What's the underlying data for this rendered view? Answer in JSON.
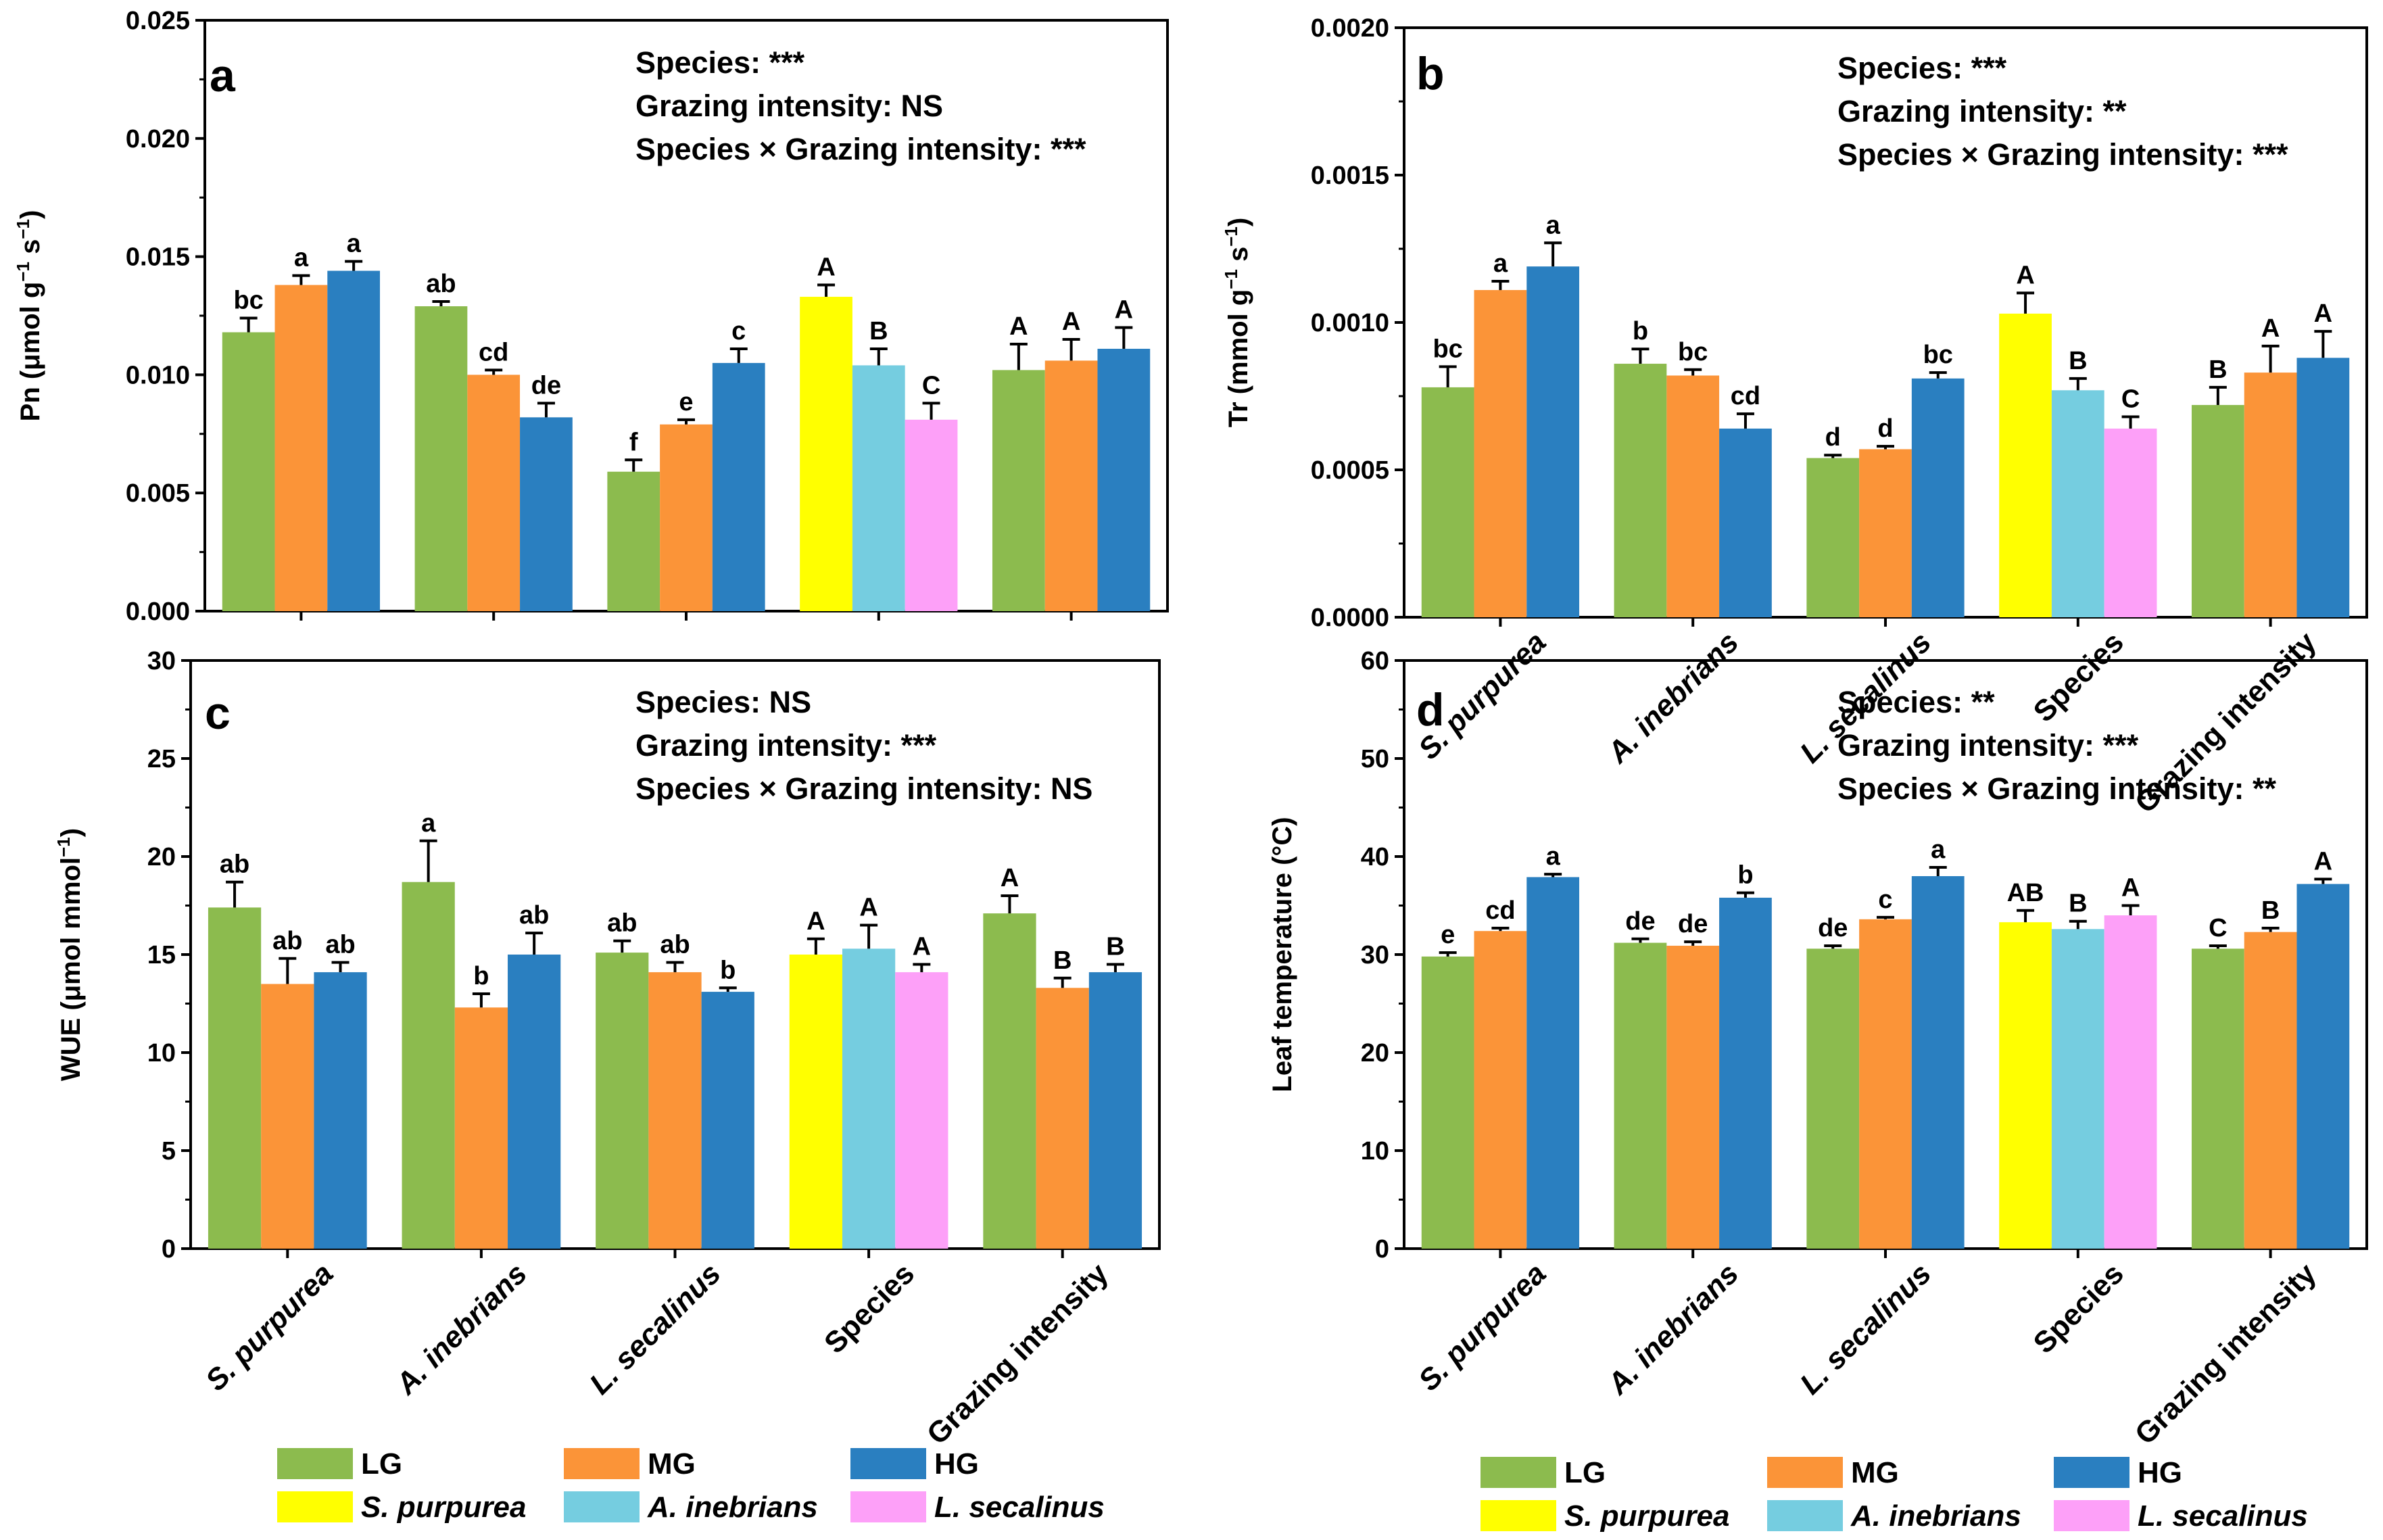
{
  "colors": {
    "LG": "#8cbb4e",
    "MG": "#fb9438",
    "HG": "#2a7fc0",
    "S. purpurea": "#ffff00",
    "A. inebrians": "#75cde0",
    "L. secalinus": "#fda0f8"
  },
  "categories": [
    "S. purpurea",
    "A. inebrians",
    "L. secalinus",
    "Species",
    "Grazing intensity"
  ],
  "legend": {
    "left": [
      {
        "label": "LG",
        "color_key": "LG",
        "italic": false
      },
      {
        "label": "MG",
        "color_key": "MG",
        "italic": false
      },
      {
        "label": "HG",
        "color_key": "HG",
        "italic": false
      },
      {
        "label": "S. purpurea",
        "color_key": "S. purpurea",
        "italic": true
      },
      {
        "label": "A. inebrians",
        "color_key": "A. inebrians",
        "italic": true
      },
      {
        "label": "L. secalinus",
        "color_key": "L. secalinus",
        "italic": true
      }
    ],
    "right": [
      {
        "label": "LG",
        "color_key": "LG",
        "italic": false
      },
      {
        "label": "MG",
        "color_key": "MG",
        "italic": false
      },
      {
        "label": "HG",
        "color_key": "HG",
        "italic": false
      },
      {
        "label": "S. purpurea",
        "color_key": "S. purpurea",
        "italic": true
      },
      {
        "label": "A. inebrians",
        "color_key": "A. inebrians",
        "italic": true
      },
      {
        "label": "L. secalinus",
        "color_key": "L. secalinus",
        "italic": true
      }
    ]
  },
  "chart_data": [
    {
      "type": "bar",
      "panel": "a",
      "ylabel_parts": [
        "Pn (",
        "μ",
        "mol g",
        "−1",
        " s",
        "−1",
        ")"
      ],
      "ylim": [
        0,
        0.025
      ],
      "ytick_labels": [
        "0.000",
        "0.005",
        "0.010",
        "0.015",
        "0.020",
        "0.025"
      ],
      "stats": [
        "Species: ***",
        "Grazing intensity: NS",
        "Species × Grazing intensity: ***"
      ],
      "groups": [
        {
          "category": "S. purpurea",
          "bars": [
            {
              "series": "LG",
              "value": 0.0118,
              "err": 0.0006,
              "letter": "bc"
            },
            {
              "series": "MG",
              "value": 0.0138,
              "err": 0.0004,
              "letter": "a"
            },
            {
              "series": "HG",
              "value": 0.0144,
              "err": 0.0004,
              "letter": "a"
            }
          ]
        },
        {
          "category": "A. inebrians",
          "bars": [
            {
              "series": "LG",
              "value": 0.0129,
              "err": 0.0002,
              "letter": "ab"
            },
            {
              "series": "MG",
              "value": 0.01,
              "err": 0.0002,
              "letter": "cd"
            },
            {
              "series": "HG",
              "value": 0.0082,
              "err": 0.0006,
              "letter": "de"
            }
          ]
        },
        {
          "category": "L. secalinus",
          "bars": [
            {
              "series": "LG",
              "value": 0.0059,
              "err": 0.0005,
              "letter": "f"
            },
            {
              "series": "MG",
              "value": 0.0079,
              "err": 0.0002,
              "letter": "e"
            },
            {
              "series": "HG",
              "value": 0.0105,
              "err": 0.0006,
              "letter": "c"
            }
          ]
        },
        {
          "category": "Species",
          "bars": [
            {
              "series": "S. purpurea",
              "value": 0.0133,
              "err": 0.0005,
              "letter": "A"
            },
            {
              "series": "A. inebrians",
              "value": 0.0104,
              "err": 0.0007,
              "letter": "B"
            },
            {
              "series": "L. secalinus",
              "value": 0.0081,
              "err": 0.0007,
              "letter": "C"
            }
          ]
        },
        {
          "category": "Grazing intensity",
          "bars": [
            {
              "series": "LG",
              "value": 0.0102,
              "err": 0.0011,
              "letter": "A"
            },
            {
              "series": "MG",
              "value": 0.0106,
              "err": 0.0009,
              "letter": "A"
            },
            {
              "series": "HG",
              "value": 0.0111,
              "err": 0.0009,
              "letter": "A"
            }
          ]
        }
      ]
    },
    {
      "type": "bar",
      "panel": "b",
      "ylabel_parts": [
        "Tr (mmol g",
        "−1",
        " s",
        "−1",
        ")"
      ],
      "ylim": [
        0,
        0.002
      ],
      "ytick_labels": [
        "0.0000",
        "0.0005",
        "0.0010",
        "0.0015",
        "0.0020"
      ],
      "stats": [
        "Species: ***",
        "Grazing intensity: **",
        "Species × Grazing intensity: ***"
      ],
      "groups": [
        {
          "category": "S. purpurea",
          "bars": [
            {
              "series": "LG",
              "value": 0.00078,
              "err": 7e-05,
              "letter": "bc"
            },
            {
              "series": "MG",
              "value": 0.00111,
              "err": 3e-05,
              "letter": "a"
            },
            {
              "series": "HG",
              "value": 0.00119,
              "err": 8e-05,
              "letter": "a"
            }
          ]
        },
        {
          "category": "A. inebrians",
          "bars": [
            {
              "series": "LG",
              "value": 0.00086,
              "err": 5e-05,
              "letter": "b"
            },
            {
              "series": "MG",
              "value": 0.00082,
              "err": 2e-05,
              "letter": "bc"
            },
            {
              "series": "HG",
              "value": 0.00064,
              "err": 5e-05,
              "letter": "cd"
            }
          ]
        },
        {
          "category": "L. secalinus",
          "bars": [
            {
              "series": "LG",
              "value": 0.00054,
              "err": 1e-05,
              "letter": "d"
            },
            {
              "series": "MG",
              "value": 0.00057,
              "err": 1e-05,
              "letter": "d"
            },
            {
              "series": "HG",
              "value": 0.00081,
              "err": 2e-05,
              "letter": "bc"
            }
          ]
        },
        {
          "category": "Species",
          "bars": [
            {
              "series": "S. purpurea",
              "value": 0.00103,
              "err": 7e-05,
              "letter": "A"
            },
            {
              "series": "A. inebrians",
              "value": 0.00077,
              "err": 4e-05,
              "letter": "B"
            },
            {
              "series": "L. secalinus",
              "value": 0.00064,
              "err": 4e-05,
              "letter": "C"
            }
          ]
        },
        {
          "category": "Grazing intensity",
          "bars": [
            {
              "series": "LG",
              "value": 0.00072,
              "err": 6e-05,
              "letter": "B"
            },
            {
              "series": "MG",
              "value": 0.00083,
              "err": 9e-05,
              "letter": "A"
            },
            {
              "series": "HG",
              "value": 0.00088,
              "err": 9e-05,
              "letter": "A"
            }
          ]
        }
      ]
    },
    {
      "type": "bar",
      "panel": "c",
      "ylabel_parts": [
        "WUE (",
        "μ",
        "mol mmol",
        "−1",
        ")"
      ],
      "ylim": [
        0,
        30
      ],
      "ytick_labels": [
        "0",
        "5",
        "10",
        "15",
        "20",
        "25",
        "30"
      ],
      "stats": [
        "Species: NS",
        "Grazing intensity: ***",
        "Species × Grazing intensity: NS"
      ],
      "groups": [
        {
          "category": "S. purpurea",
          "bars": [
            {
              "series": "LG",
              "value": 17.4,
              "err": 1.3,
              "letter": "ab"
            },
            {
              "series": "MG",
              "value": 13.5,
              "err": 1.3,
              "letter": "ab"
            },
            {
              "series": "HG",
              "value": 14.1,
              "err": 0.5,
              "letter": "ab"
            }
          ]
        },
        {
          "category": "A. inebrians",
          "bars": [
            {
              "series": "LG",
              "value": 18.7,
              "err": 2.1,
              "letter": "a"
            },
            {
              "series": "MG",
              "value": 12.3,
              "err": 0.7,
              "letter": "b"
            },
            {
              "series": "HG",
              "value": 15.0,
              "err": 1.1,
              "letter": "ab"
            }
          ]
        },
        {
          "category": "L. secalinus",
          "bars": [
            {
              "series": "LG",
              "value": 15.1,
              "err": 0.6,
              "letter": "ab"
            },
            {
              "series": "MG",
              "value": 14.1,
              "err": 0.5,
              "letter": "ab"
            },
            {
              "series": "HG",
              "value": 13.1,
              "err": 0.2,
              "letter": "b"
            }
          ]
        },
        {
          "category": "Species",
          "bars": [
            {
              "series": "S. purpurea",
              "value": 15.0,
              "err": 0.8,
              "letter": "A"
            },
            {
              "series": "A. inebrians",
              "value": 15.3,
              "err": 1.2,
              "letter": "A"
            },
            {
              "series": "L. secalinus",
              "value": 14.1,
              "err": 0.4,
              "letter": "A"
            }
          ]
        },
        {
          "category": "Grazing intensity",
          "bars": [
            {
              "series": "LG",
              "value": 17.1,
              "err": 0.9,
              "letter": "A"
            },
            {
              "series": "MG",
              "value": 13.3,
              "err": 0.5,
              "letter": "B"
            },
            {
              "series": "HG",
              "value": 14.1,
              "err": 0.4,
              "letter": "B"
            }
          ]
        }
      ]
    },
    {
      "type": "bar",
      "panel": "d",
      "ylabel_parts": [
        "Leaf temperature (",
        "°",
        "C)"
      ],
      "ylim": [
        0,
        60
      ],
      "ytick_labels": [
        "0",
        "10",
        "20",
        "30",
        "40",
        "50",
        "60"
      ],
      "stats": [
        "Species: **",
        "Grazing intensity: ***",
        "Species × Grazing intensity: **"
      ],
      "groups": [
        {
          "category": "S. purpurea",
          "bars": [
            {
              "series": "LG",
              "value": 29.8,
              "err": 0.4,
              "letter": "e"
            },
            {
              "series": "MG",
              "value": 32.4,
              "err": 0.3,
              "letter": "cd"
            },
            {
              "series": "HG",
              "value": 37.9,
              "err": 0.3,
              "letter": "a"
            }
          ]
        },
        {
          "category": "A. inebrians",
          "bars": [
            {
              "series": "LG",
              "value": 31.2,
              "err": 0.4,
              "letter": "de"
            },
            {
              "series": "MG",
              "value": 30.9,
              "err": 0.4,
              "letter": "de"
            },
            {
              "series": "HG",
              "value": 35.8,
              "err": 0.5,
              "letter": "b"
            }
          ]
        },
        {
          "category": "L. secalinus",
          "bars": [
            {
              "series": "LG",
              "value": 30.6,
              "err": 0.3,
              "letter": "de"
            },
            {
              "series": "MG",
              "value": 33.6,
              "err": 0.2,
              "letter": "c"
            },
            {
              "series": "HG",
              "value": 38.0,
              "err": 0.9,
              "letter": "a"
            }
          ]
        },
        {
          "category": "Species",
          "bars": [
            {
              "series": "S. purpurea",
              "value": 33.3,
              "err": 1.2,
              "letter": "AB"
            },
            {
              "series": "A. inebrians",
              "value": 32.6,
              "err": 0.8,
              "letter": "B"
            },
            {
              "series": "L. secalinus",
              "value": 34.0,
              "err": 1.0,
              "letter": "A"
            }
          ]
        },
        {
          "category": "Grazing intensity",
          "bars": [
            {
              "series": "LG",
              "value": 30.6,
              "err": 0.3,
              "letter": "C"
            },
            {
              "series": "MG",
              "value": 32.3,
              "err": 0.4,
              "letter": "B"
            },
            {
              "series": "HG",
              "value": 37.2,
              "err": 0.5,
              "letter": "A"
            }
          ]
        }
      ]
    }
  ]
}
